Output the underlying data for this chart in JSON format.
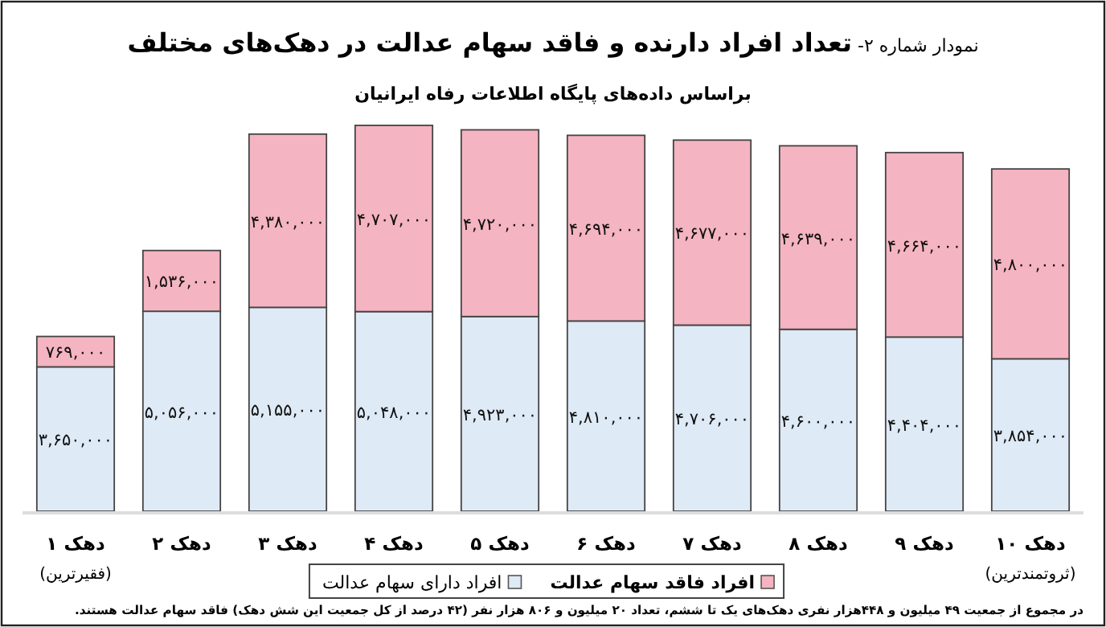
{
  "chart_data": {
    "type": "bar",
    "stacked": true,
    "title": "نمودار شماره ۲- **تعداد افراد دارنده و فاقد سهام عدالت در دهک‌های مختلف**",
    "subtitle": "براساس داده‌های پایگاه اطلاعات رفاه ایرانیان",
    "categories": [
      "دهک ۱",
      "دهک ۲",
      "دهک ۳",
      "دهک ۴",
      "دهک ۵",
      "دهک ۶",
      "دهک ۷",
      "دهک ۸",
      "دهک ۹",
      "دهک ۱۰"
    ],
    "series": [
      {
        "name": "افراد دارای سهام عدالت",
        "color": "#deeaf6",
        "values": [
          3650000,
          5056000,
          5155000,
          5048000,
          4923000,
          4810000,
          4706000,
          4600000,
          4404000,
          3854000
        ],
        "value_labels": [
          "۳,۶۵۰,۰۰۰",
          "۵,۰۵۶,۰۰۰",
          "۵,۱۵۵,۰۰۰",
          "۵,۰۴۸,۰۰۰",
          "۴,۹۲۳,۰۰۰",
          "۴,۸۱۰,۰۰۰",
          "۴,۷۰۶,۰۰۰",
          "۴,۶۰۰,۰۰۰",
          "۴,۴۰۴,۰۰۰",
          "۳,۸۵۴,۰۰۰"
        ]
      },
      {
        "name": "افراد فاقد سهام عدالت",
        "color": "#f5b4c1",
        "values": [
          769000,
          1536000,
          4380000,
          4707000,
          4720000,
          4694000,
          4677000,
          4639000,
          4664000,
          4800000
        ],
        "value_labels": [
          "۷۶۹,۰۰۰",
          "۱,۵۳۶,۰۰۰",
          "۴,۳۸۰,۰۰۰",
          "۴,۷۰۷,۰۰۰",
          "۴,۷۲۰,۰۰۰",
          "۴,۶۹۴,۰۰۰",
          "۴,۶۷۷,۰۰۰",
          "۴,۶۳۹,۰۰۰",
          "۴,۶۶۴,۰۰۰",
          "۴,۸۰۰,۰۰۰"
        ]
      }
    ],
    "legend": "bottom",
    "tick_labels": "x",
    "annotations": [
      "(فقیرترین)",
      "(ثروتمندترین)",
      "در مجموع از جمعیت ۴۹ میلیون و ۴۴۸هزار نفری دهک‌های یک تا ششم، تعداد ۲۰ میلیون و ۸۰۶ هزار نفر (۴۲ درصد از کل جمعیت این شش دهک) فاقد سهام عدالت هستند."
    ]
  }
}
